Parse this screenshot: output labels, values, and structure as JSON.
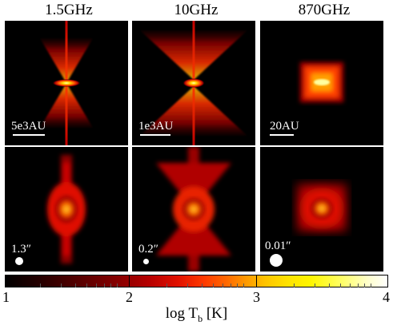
{
  "columns": [
    {
      "title": "1.5GHz",
      "scale_text": "5e3AU",
      "beam_text": "1.3″"
    },
    {
      "title": "10GHz",
      "scale_text": "1e3AU",
      "beam_text": "0.2″"
    },
    {
      "title": "870GHz",
      "scale_text": "20AU",
      "beam_text": "0.01″"
    }
  ],
  "colorbar": {
    "ticks": [
      "1",
      "2",
      "3",
      "4"
    ],
    "label_main": "log T",
    "label_sub": "b",
    "label_unit": " [K]"
  }
}
